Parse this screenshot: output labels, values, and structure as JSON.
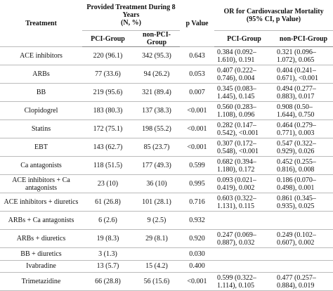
{
  "header": {
    "treatment": "Treatment",
    "provided": "Provided Treatment During 8 Years",
    "provided_unit": "(N, %)",
    "p_value": "p Value",
    "or": "OR for Cardiovascular Mortality",
    "or_unit": "(95% CI, p Value)",
    "sub": [
      "PCI-Group",
      "non-PCI-Group",
      "PCI-Group",
      "non-PCI-Group"
    ]
  },
  "table": {
    "rows": [
      [
        "ACE inhibitors",
        "220 (96.1)",
        "342 (95.3)",
        "0.643",
        "0.384 (0.092–1.610), 0.191",
        "0.321 (0.096–1.072), 0.065"
      ],
      [
        "ARBs",
        "77 (33.6)",
        "94 (26.2)",
        "0.053",
        "0.407 (0.222–0.746), 0.004",
        "0.404 (0.241–0.671), <0.001"
      ],
      [
        "BB",
        "219 (95.6)",
        "321 (89.4)",
        "0.007",
        "0.345 (0.083–1.445), 0.145",
        "0.494 (0.277–0.883), 0.017"
      ],
      [
        "Clopidogrel",
        "183 (80.3)",
        "137 (38.3)",
        "<0.001",
        "0.560 (0.283–1.108), 0.096",
        "0.908 (0.50–1.644), 0.750"
      ],
      [
        "Statins",
        "172 (75.1)",
        "198 (55.2)",
        "<0.001",
        "0.282 (0.147–0.542), <0.001",
        "0.464 (0.279–0.771), 0.003"
      ],
      [
        "EBT",
        "143 (62.7)",
        "85 (23.7)",
        "<0.001",
        "0.307 (0.172–0.548), <0.001",
        "0.547 (0.322–0.929), 0.026"
      ],
      [
        "Ca antagonists",
        "118 (51.5)",
        "177 (49.3)",
        "0.599",
        "0.682 (0.394–1.180), 0.172",
        "0.452 (0.255–0.816), 0.008"
      ],
      [
        "ACE inhibitors + Ca antagonists",
        "23 (10)",
        "36 (10)",
        "0.995",
        "0.093 (0.021–0.419), 0.002",
        "0.186 (0.070–0.498), 0.001"
      ],
      [
        "ACE inhibitors + diuretics",
        "61 (26.8)",
        "101 (28.1)",
        "0.716",
        "0.603 (0.322–1.131), 0.115",
        "0.861 (0.345–0.935), 0.025"
      ],
      [
        "ARBs + Ca antagonists",
        "6 (2.6)",
        "9 (2.5)",
        "0.932",
        null,
        null
      ],
      [
        "ARBs + diuretics",
        "19 (8.3)",
        "29 (8.1)",
        "0.920",
        "0.247 (0.069–0.887), 0.032",
        "0.249 (0.102–0.607), 0.002"
      ],
      [
        "BB + diuretics",
        "3 (1.3)",
        null,
        "0.030",
        null,
        null
      ],
      [
        "Ivabradine",
        "13 (5.7)",
        "15 (4.2)",
        "0.400",
        null,
        null
      ],
      [
        "Trimetazidine",
        "66 (28.8)",
        "56 (15.6)",
        "<0.001",
        "0.599 (0.322–1.114), 0.105",
        "0.477 (0.257–0.884), 0.019"
      ]
    ]
  }
}
